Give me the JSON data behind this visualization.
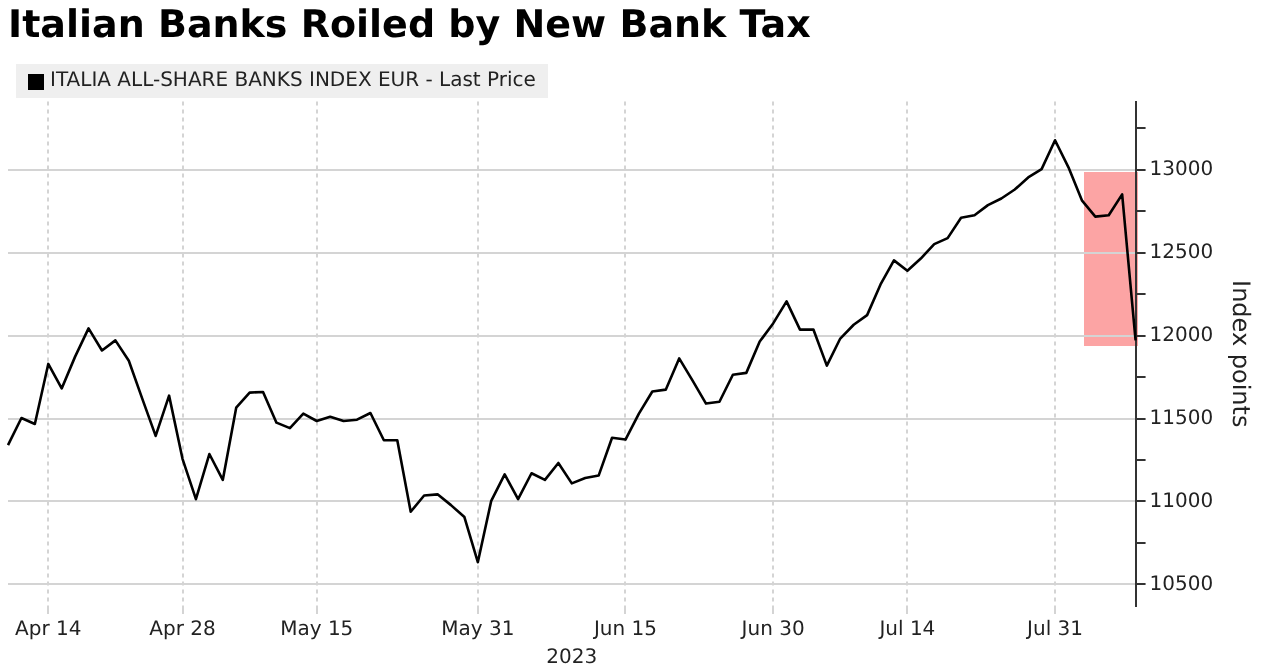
{
  "chart_data": {
    "type": "line",
    "title": "Italian Banks Roiled by New Bank Tax",
    "xlabel": "2023",
    "ylabel": "Index points",
    "categories": [
      null,
      null,
      null,
      "Apr 14",
      null,
      null,
      null,
      null,
      null,
      null,
      null,
      null,
      null,
      "Apr 28",
      null,
      null,
      null,
      null,
      null,
      null,
      null,
      null,
      null,
      "May 15",
      null,
      null,
      null,
      null,
      null,
      null,
      null,
      null,
      null,
      null,
      null,
      "May 31",
      null,
      null,
      null,
      null,
      null,
      null,
      null,
      null,
      null,
      null,
      "Jun 15",
      null,
      null,
      null,
      null,
      null,
      null,
      null,
      null,
      null,
      null,
      "Jun 30",
      null,
      null,
      null,
      null,
      null,
      null,
      null,
      null,
      null,
      "Jul 14",
      null,
      null,
      null,
      null,
      null,
      null,
      null,
      null,
      null,
      null,
      "Jul 31",
      null,
      null,
      null,
      null,
      null,
      null
    ],
    "series": [
      {
        "name": "ITALIA ALL-SHARE BANKS INDEX EUR - Last Price",
        "color": "#000000",
        "values": [
          11340,
          11503,
          11467,
          11829,
          11681,
          11873,
          12043,
          11910,
          11971,
          11848,
          11620,
          11395,
          11638,
          11257,
          11014,
          11286,
          11130,
          11565,
          11656,
          11660,
          11475,
          11442,
          11529,
          11485,
          11511,
          11485,
          11493,
          11533,
          11369,
          11369,
          10938,
          11036,
          11043,
          10978,
          10906,
          10634,
          11004,
          11163,
          11014,
          11170,
          11130,
          11232,
          11109,
          11141,
          11156,
          11384,
          11373,
          11529,
          11663,
          11674,
          11862,
          11728,
          11590,
          11601,
          11764,
          11775,
          11964,
          12073,
          12206,
          12036,
          12036,
          11819,
          11982,
          12065,
          12123,
          12308,
          12453,
          12391,
          12464,
          12551,
          12587,
          12710,
          12725,
          12786,
          12826,
          12880,
          12953,
          13003,
          13177,
          13014,
          12815,
          12717,
          12725,
          12851,
          11971
        ]
      }
    ],
    "ylim": [
      10370,
      13410
    ],
    "yticks": [
      10500,
      {
        "value": 10750,
        "label": null
      },
      11000,
      {
        "value": 11250,
        "label": null
      },
      11500,
      {
        "value": 11750,
        "label": null
      },
      12000,
      {
        "value": 12250,
        "label": null
      },
      12500,
      {
        "value": 12750,
        "label": null
      },
      13000,
      {
        "value": 13250,
        "label": null
      }
    ],
    "grid": true,
    "legend": "top left",
    "marker": "none",
    "line_style": "solid"
  }
}
